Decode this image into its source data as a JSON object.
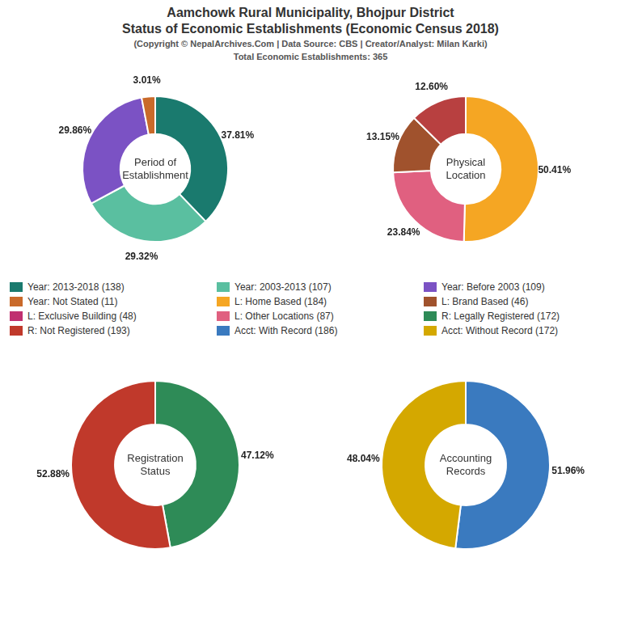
{
  "title": [
    "Aamchowk Rural Municipality, Bhojpur District",
    "Status of Economic Establishments (Economic Census 2018)"
  ],
  "subtitle": [
    "(Copyright © NepalArchives.Com | Data Source: CBS | Creator/Analyst: Milan Karki)",
    "Total Economic Establishments: 365"
  ],
  "legend_entries": [
    {
      "name": "Year: 2013-2018 (138)",
      "color": "#1a7a6e"
    },
    {
      "name": "Year: 2003-2013 (107)",
      "color": "#5abfa0"
    },
    {
      "name": "Year: Before 2003 (109)",
      "color": "#7b52c4"
    },
    {
      "name": "Year: Not Stated (11)",
      "color": "#c96a2a"
    },
    {
      "name": "L: Home Based (184)",
      "color": "#f5a623"
    },
    {
      "name": "L: Brand Based (46)",
      "color": "#a0522d"
    },
    {
      "name": "L: Exclusive Building (48)",
      "color": "#c03070"
    },
    {
      "name": "L: Other Locations (87)",
      "color": "#e06080"
    },
    {
      "name": "R: Legally Registered (172)",
      "color": "#2e8b57"
    },
    {
      "name": "R: Not Registered (193)",
      "color": "#c0392b"
    },
    {
      "name": "Acct: With Record (186)",
      "color": "#3a7abf"
    },
    {
      "name": "Acct: Without Record (172)",
      "color": "#d4a800"
    }
  ],
  "chart_data": [
    {
      "type": "pie",
      "title": "Period of\nEstablishment",
      "values": [
        37.81,
        29.32,
        29.86,
        3.01
      ],
      "value_labels": [
        "37.81%",
        "29.32%",
        "29.86%",
        "3.01%"
      ],
      "colors": [
        "#1a7a6e",
        "#5abfa0",
        "#7b52c4",
        "#c96a2a"
      ],
      "data_labels": true
    },
    {
      "type": "pie",
      "title": "Physical\nLocation",
      "values": [
        50.41,
        23.84,
        13.15,
        12.6
      ],
      "value_labels": [
        "50.41%",
        "23.84%",
        "13.15%",
        "12.60%"
      ],
      "colors": [
        "#f5a623",
        "#e06080",
        "#a0522d",
        "#b84040"
      ],
      "data_labels": true
    },
    {
      "type": "pie",
      "title": "Registration\nStatus",
      "values": [
        47.12,
        52.88
      ],
      "value_labels": [
        "47.12%",
        "52.88%"
      ],
      "colors": [
        "#2e8b57",
        "#c0392b"
      ],
      "data_labels": true
    },
    {
      "type": "pie",
      "title": "Accounting\nRecords",
      "values": [
        51.96,
        48.04
      ],
      "value_labels": [
        "51.96%",
        "48.04%"
      ],
      "colors": [
        "#3a7abf",
        "#d4a800"
      ],
      "data_labels": true
    }
  ]
}
